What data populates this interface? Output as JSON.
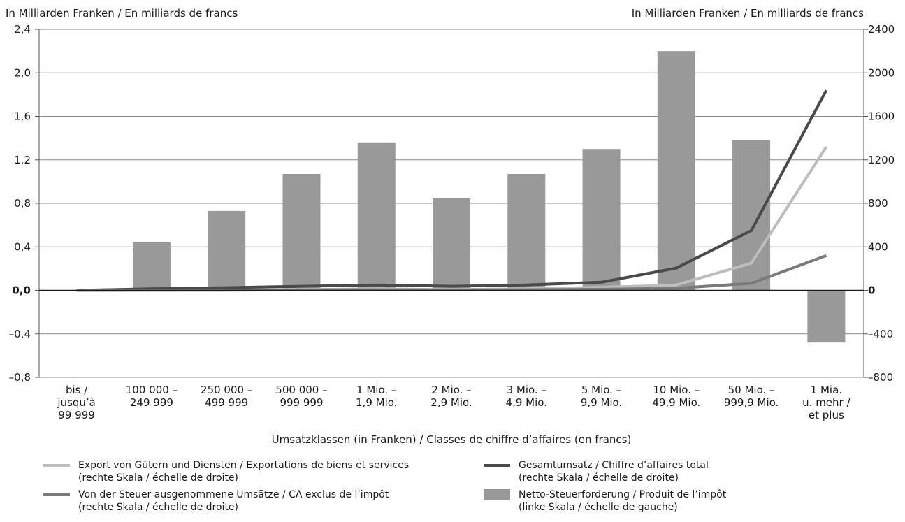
{
  "chart_data": {
    "type": "bar",
    "left_axis_label": "In Milliarden Franken / En milliards de francs",
    "right_axis_label": "In Milliarden Franken / En milliards de francs",
    "xlabel": "Umsatzklassen (in Franken) / Classes de chiffre d’affaires (en francs)",
    "left_ticks": [
      "2,4",
      "2,0",
      "1,6",
      "1,2",
      "0,8",
      "0,4",
      "0,0",
      "–0,4",
      "–0,8"
    ],
    "right_ticks": [
      "2400",
      "2000",
      "1600",
      "1200",
      "800",
      "400",
      "0",
      "–400",
      "–800"
    ],
    "ylim_left": [
      -0.8,
      2.4
    ],
    "ylim_right": [
      -800,
      2400
    ],
    "grid": true,
    "categories": [
      [
        "bis /",
        "jusqu’à",
        "99 999"
      ],
      [
        "100 000 –",
        "249 999"
      ],
      [
        "250 000 –",
        "499 999"
      ],
      [
        "500 000 –",
        "999 999"
      ],
      [
        "1 Mio. –",
        "1,9 Mio."
      ],
      [
        "2 Mio. –",
        "2,9 Mio."
      ],
      [
        "3 Mio. –",
        "4,9 Mio."
      ],
      [
        "5 Mio. –",
        "9,9 Mio."
      ],
      [
        "10 Mio. –",
        "49,9 Mio."
      ],
      [
        "50 Mio. –",
        "999,9 Mio."
      ],
      [
        "1 Mia.",
        "u. mehr /",
        "et plus"
      ]
    ],
    "bars": {
      "name": "Netto-Steuerforderung / Produit de l’impôt",
      "axis": "left",
      "color": "#999999",
      "values": [
        0.0,
        0.44,
        0.73,
        1.07,
        1.36,
        0.85,
        1.07,
        1.3,
        2.2,
        1.38,
        -0.48
      ]
    },
    "lines": [
      {
        "name": "Export von Gütern und Diensten / Exportations de biens et services",
        "axis": "right",
        "color": "#bdbdbd",
        "values": [
          0,
          2,
          4,
          8,
          15,
          8,
          15,
          28,
          50,
          250,
          1320
        ]
      },
      {
        "name": "Gesamtumsatz / Chiffre d’affaires total",
        "axis": "right",
        "color": "#4a4a4a",
        "values": [
          0,
          15,
          25,
          38,
          50,
          38,
          50,
          75,
          205,
          550,
          1840
        ]
      },
      {
        "name": "Von der Steuer ausgenommene Umsätze / CA exclus de l’impôt",
        "axis": "right",
        "color": "#7a7a7a",
        "values": [
          0,
          1,
          2,
          4,
          6,
          4,
          6,
          10,
          20,
          65,
          320
        ]
      }
    ]
  },
  "legend": {
    "export": {
      "line1": "Export von Gütern und Diensten / Exportations de biens et services",
      "line2": "(rechte Skala / échelle de droite)",
      "color": "#bdbdbd"
    },
    "total": {
      "line1": "Gesamtumsatz / Chiffre d’affaires total",
      "line2": "(rechte Skala / échelle de droite)",
      "color": "#4a4a4a"
    },
    "exempt": {
      "line1": "Von der Steuer ausgenommene Umsätze / CA exclus de l’impôt",
      "line2": "(rechte Skala / échelle de droite)",
      "color": "#7a7a7a"
    },
    "net": {
      "line1": "Netto-Steuerforderung / Produit de l’impôt",
      "line2": "(linke Skala / échelle de gauche)",
      "color": "#999999"
    }
  }
}
